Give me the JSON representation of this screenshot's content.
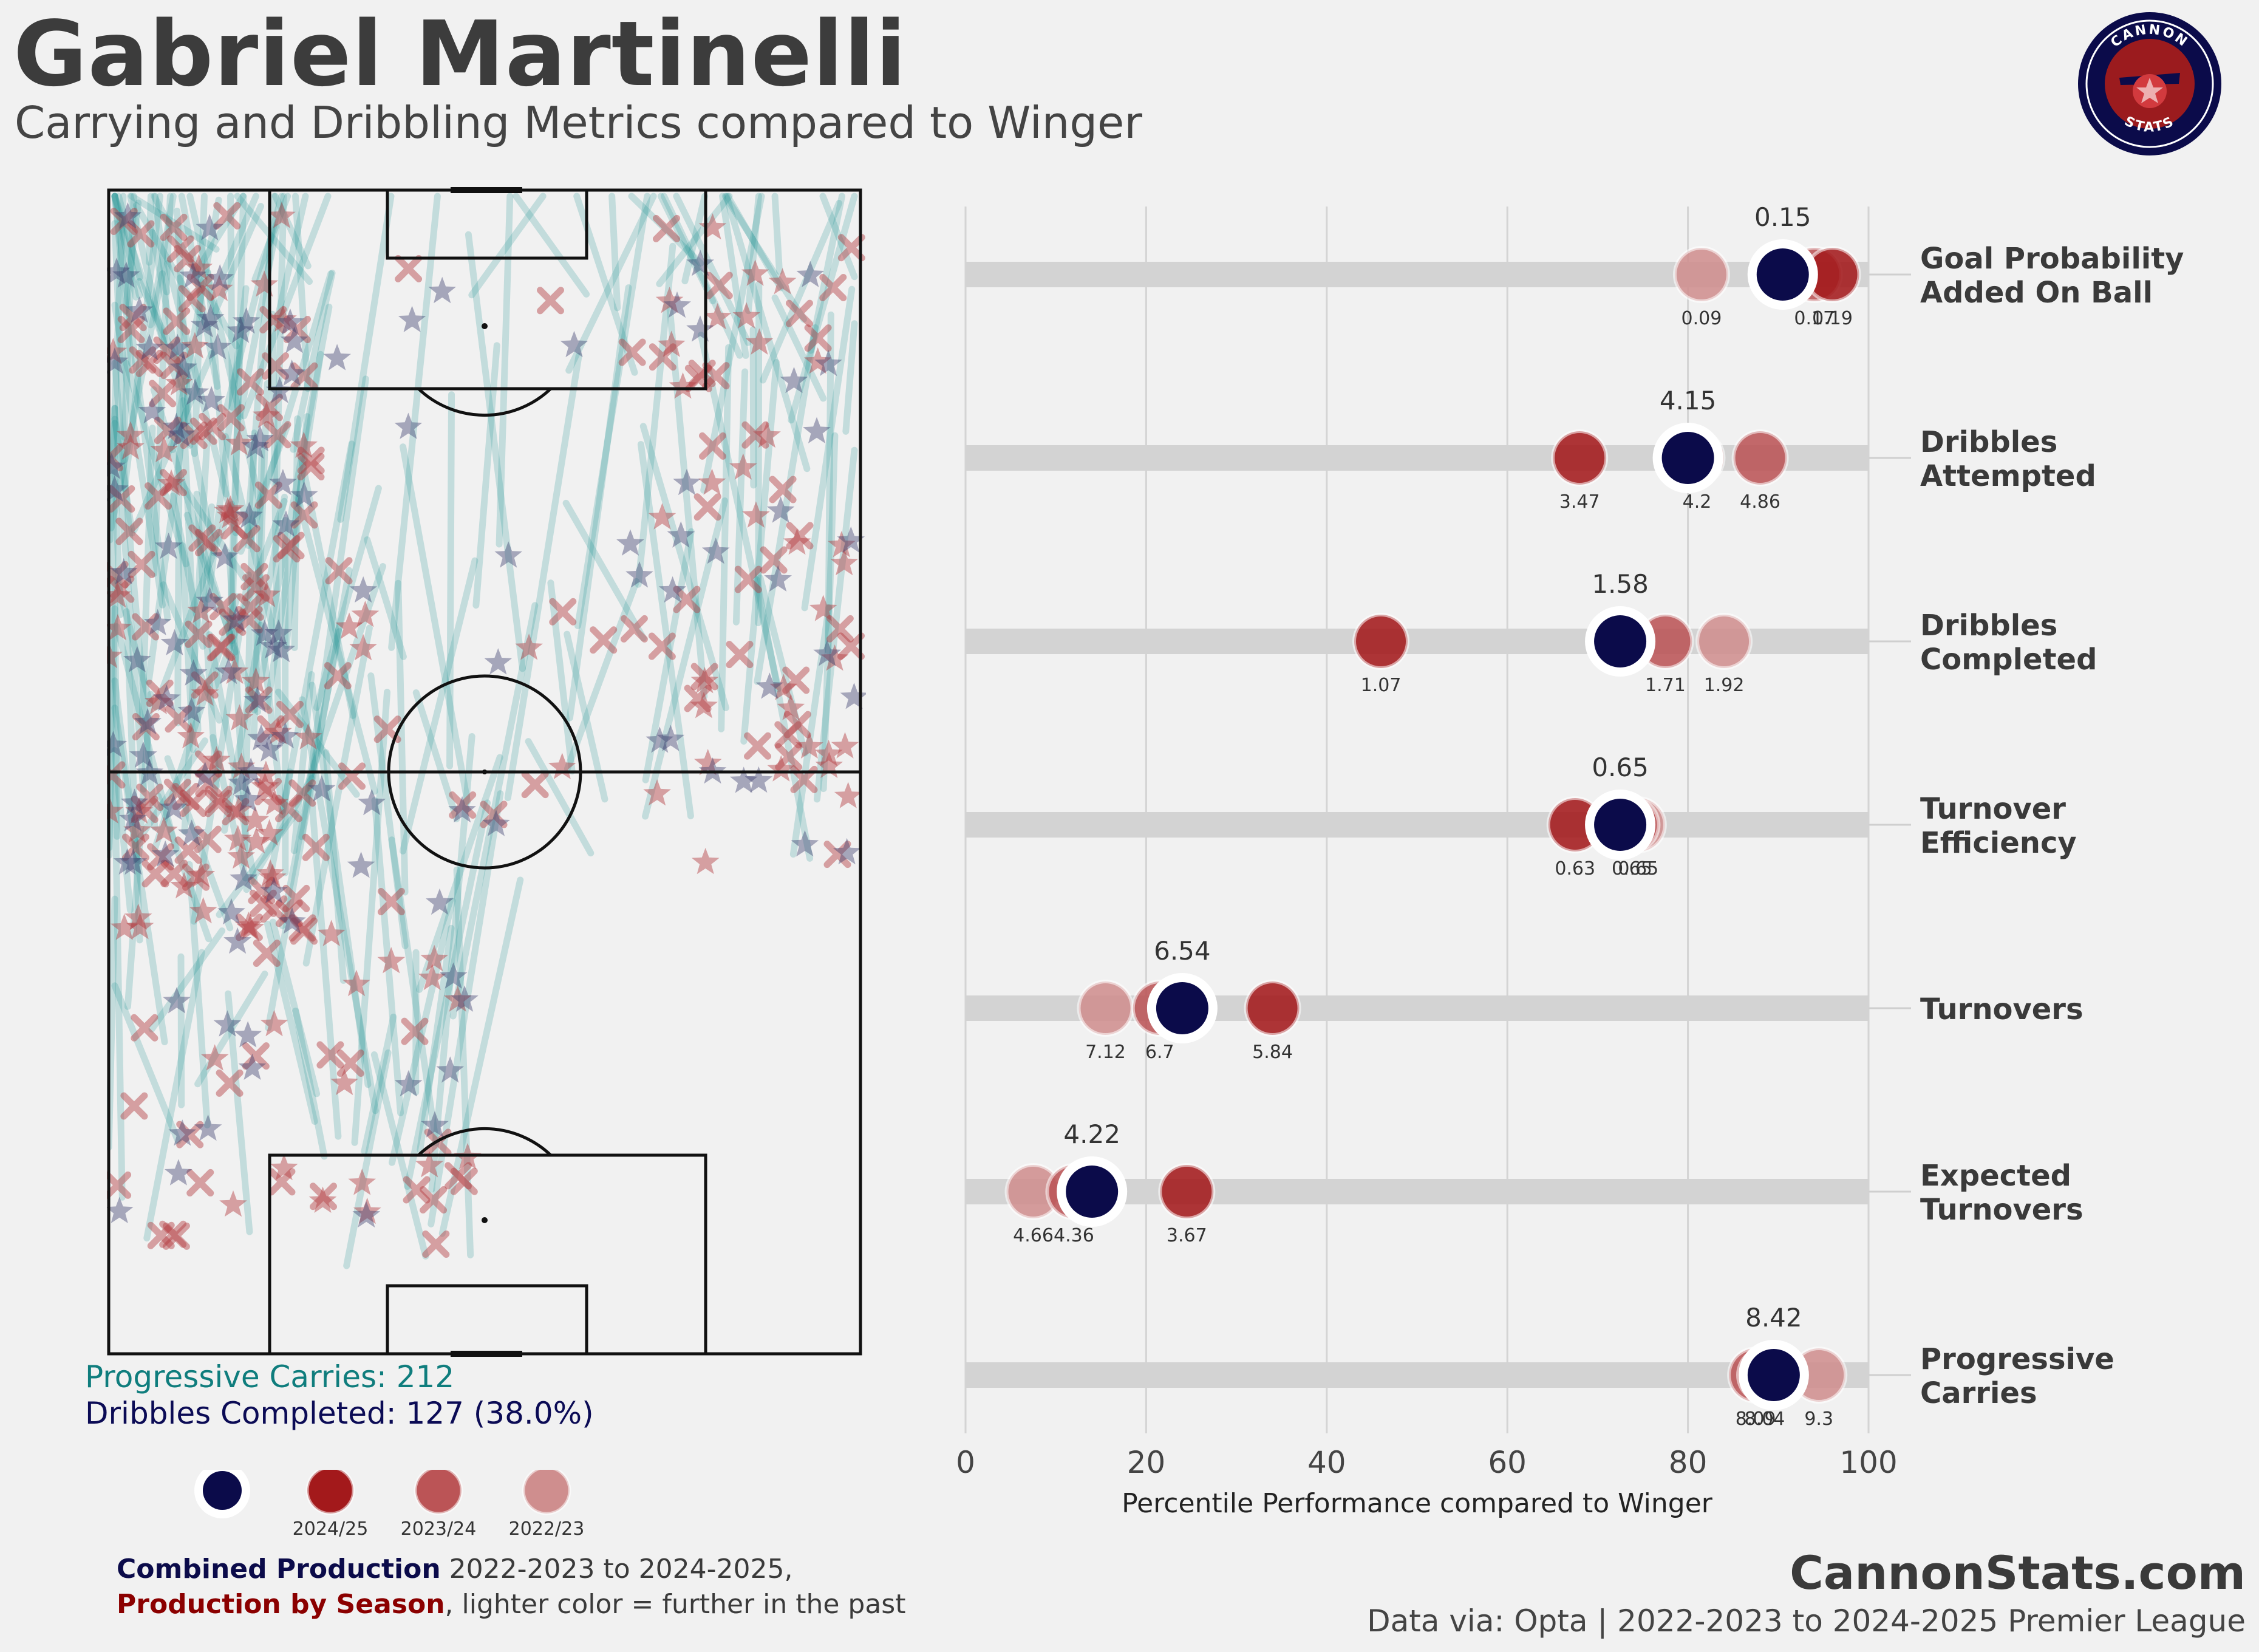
{
  "header": {
    "title": "Gabriel Martinelli",
    "subtitle": "Carrying and Dribbling Metrics compared to Winger"
  },
  "logo": {
    "top_text": "CANNON",
    "bottom_text": "STATS"
  },
  "pitch_stats": {
    "progressive_carries": "Progressive Carries: 212",
    "dribbles_completed": "Dribbles Completed: 127 (38.0%)"
  },
  "legend": {
    "items": [
      {
        "label": "",
        "color": "#0b0b4a",
        "kind": "combined"
      },
      {
        "label": "2024/25",
        "color": "#a3191b",
        "kind": "season"
      },
      {
        "label": "2023/24",
        "color": "#bb5456",
        "kind": "season"
      },
      {
        "label": "2022/23",
        "color": "#cf8e8e",
        "kind": "season"
      }
    ],
    "line1_bold": "Combined Production",
    "line1_rest": " 2022-2023 to 2024-2025,",
    "line2_bold": "Production by Season",
    "line2_rest": ", lighter color = further in the past"
  },
  "footer": {
    "site": "CannonStats.com",
    "source": "Data via: Opta | 2022-2023 to 2024-2025 Premier League"
  },
  "colors": {
    "combined": "#0b0b4a",
    "s2024": "#a3191b",
    "s2023": "#bb5456",
    "s2022": "#cf8e8e",
    "teal": "#0f8a8a",
    "accent_red": "#8b0000"
  },
  "chart_data": {
    "type": "dot-percentile",
    "xlabel": "Percentile Performance compared to Winger",
    "xlim": [
      0,
      100
    ],
    "xticks": [
      "0",
      "20",
      "40",
      "60",
      "80",
      "100"
    ],
    "series_names": [
      "Combined",
      "2024/25",
      "2023/24",
      "2022/23"
    ],
    "metrics": [
      {
        "name": "Goal Probability Added On Ball",
        "label_lines": [
          "Goal Probability",
          "Added On Ball"
        ],
        "combined": {
          "pct": 90.5,
          "value": "0.15"
        },
        "seasons": [
          {
            "season": "2024/25",
            "pct": 96,
            "value": "0.19"
          },
          {
            "season": "2023/24",
            "pct": 94,
            "value": "0.17"
          },
          {
            "season": "2022/23",
            "pct": 81.5,
            "value": "0.09"
          }
        ]
      },
      {
        "name": "Dribbles Attempted",
        "label_lines": [
          "Dribbles",
          "Attempted"
        ],
        "combined": {
          "pct": 80,
          "value": "4.15"
        },
        "seasons": [
          {
            "season": "2024/25",
            "pct": 68,
            "value": "3.47"
          },
          {
            "season": "2023/24",
            "pct": 88,
            "value": "4.86"
          },
          {
            "season": "2022/23",
            "pct": 81,
            "value": "4.2"
          }
        ]
      },
      {
        "name": "Dribbles Completed",
        "label_lines": [
          "Dribbles",
          "Completed"
        ],
        "combined": {
          "pct": 72.5,
          "value": "1.58"
        },
        "seasons": [
          {
            "season": "2024/25",
            "pct": 46,
            "value": "1.07"
          },
          {
            "season": "2023/24",
            "pct": 77.5,
            "value": "1.71"
          },
          {
            "season": "2022/23",
            "pct": 84,
            "value": "1.92"
          }
        ]
      },
      {
        "name": "Turnover Efficiency",
        "label_lines": [
          "Turnover",
          "Efficiency"
        ],
        "combined": {
          "pct": 72.5,
          "value": "0.65"
        },
        "seasons": [
          {
            "season": "2024/25",
            "pct": 67.5,
            "value": "0.63"
          },
          {
            "season": "2023/24",
            "pct": 73.8,
            "value": "0.65"
          },
          {
            "season": "2022/23",
            "pct": 74.5,
            "value": "0.65"
          }
        ]
      },
      {
        "name": "Turnovers",
        "label_lines": [
          "Turnovers"
        ],
        "combined": {
          "pct": 24,
          "value": "6.54"
        },
        "seasons": [
          {
            "season": "2024/25",
            "pct": 34,
            "value": "5.84"
          },
          {
            "season": "2023/24",
            "pct": 21.5,
            "value": "6.7"
          },
          {
            "season": "2022/23",
            "pct": 15.5,
            "value": "7.12"
          }
        ]
      },
      {
        "name": "Expected Turnovers",
        "label_lines": [
          "Expected",
          "Turnovers"
        ],
        "combined": {
          "pct": 14,
          "value": "4.22"
        },
        "seasons": [
          {
            "season": "2024/25",
            "pct": 24.5,
            "value": "3.67"
          },
          {
            "season": "2023/24",
            "pct": 12,
            "value": "4.36"
          },
          {
            "season": "2022/23",
            "pct": 7.5,
            "value": "4.66"
          }
        ]
      },
      {
        "name": "Progressive Carries",
        "label_lines": [
          "Progressive",
          "Carries"
        ],
        "combined": {
          "pct": 89.5,
          "value": "8.42"
        },
        "seasons": [
          {
            "season": "2024/25",
            "pct": 88.5,
            "value": "8.04"
          },
          {
            "season": "2023/24",
            "pct": 87.5,
            "value": "8.09"
          },
          {
            "season": "2022/23",
            "pct": 94.5,
            "value": "9.3"
          }
        ]
      }
    ]
  }
}
